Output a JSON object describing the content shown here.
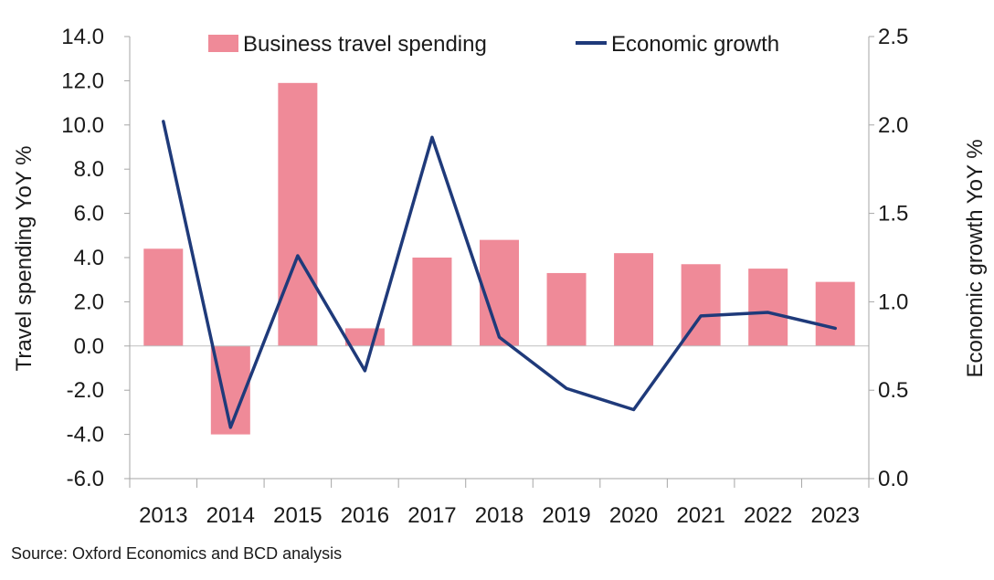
{
  "chart_data": {
    "type": "bar",
    "categories": [
      "2013",
      "2014",
      "2015",
      "2016",
      "2017",
      "2018",
      "2019",
      "2020",
      "2021",
      "2022",
      "2023"
    ],
    "series": [
      {
        "name": "Business travel spending",
        "type": "bar",
        "axis": "left",
        "color": "#EF8A98",
        "values": [
          4.4,
          -4.0,
          11.9,
          0.8,
          4.0,
          4.8,
          3.3,
          4.2,
          3.7,
          3.5,
          2.9
        ]
      },
      {
        "name": "Economic growth",
        "type": "line",
        "axis": "right",
        "color": "#1F3A7A",
        "values": [
          2.02,
          0.29,
          1.26,
          0.61,
          1.93,
          0.8,
          0.51,
          0.39,
          0.92,
          0.94,
          0.85
        ]
      }
    ],
    "ylabel": "Travel spending YoY %",
    "y2label": "Economic growth YoY %",
    "ylim": [
      -6.0,
      14.0
    ],
    "y2lim": [
      0.0,
      2.5
    ],
    "yticks": [
      "14.0",
      "12.0",
      "10.0",
      "8.0",
      "6.0",
      "4.0",
      "2.0",
      "0.0",
      "-2.0",
      "-4.0",
      "-6.0"
    ],
    "y2ticks": [
      "2.5",
      "2.0",
      "1.5",
      "1.0",
      "0.5",
      "0.0"
    ],
    "grid": false,
    "legend_position": "top"
  },
  "source": "Source: Oxford Economics and BCD analysis"
}
